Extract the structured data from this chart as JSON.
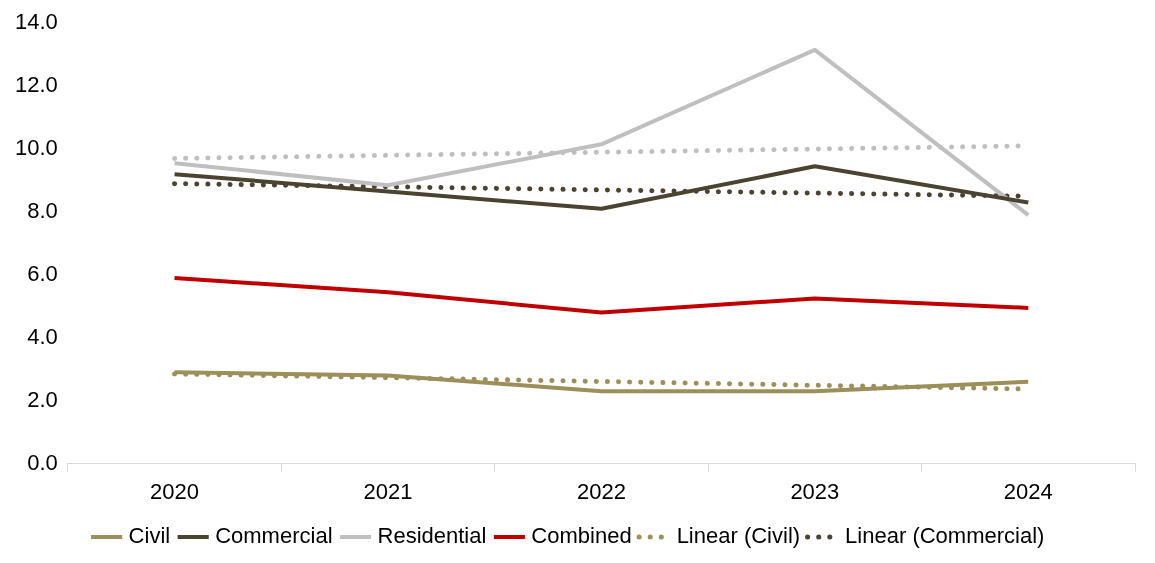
{
  "chart_data": {
    "type": "line",
    "categories": [
      "2020",
      "2021",
      "2022",
      "2023",
      "2024"
    ],
    "series": [
      {
        "name": "Civil",
        "color": "#9c8f5a",
        "values": [
          2.9,
          2.8,
          2.3,
          2.3,
          2.6
        ]
      },
      {
        "name": "Commercial",
        "color": "#4a4330",
        "values": [
          9.2,
          8.65,
          8.1,
          9.45,
          8.3
        ]
      },
      {
        "name": "Residential",
        "color": "#bfbfbf",
        "values": [
          9.55,
          8.85,
          10.15,
          13.15,
          7.9
        ]
      },
      {
        "name": "Combined",
        "color": "#c00000",
        "values": [
          5.9,
          5.45,
          4.8,
          5.25,
          4.95
        ]
      },
      {
        "name": "Linear (Civil)",
        "color": "#9c8f5a",
        "line_style": "dotted",
        "values": [
          2.85,
          2.73,
          2.61,
          2.49,
          2.37
        ]
      },
      {
        "name": "Linear (Commercial)",
        "color": "#4a4330",
        "line_style": "dotted",
        "values": [
          8.9,
          8.8,
          8.7,
          8.6,
          8.5
        ]
      },
      {
        "color": "#bfbfbf",
        "line_style": "dotted",
        "values": [
          9.7,
          9.8,
          9.9,
          10.0,
          10.1
        ]
      }
    ],
    "ylim": [
      0,
      14
    ],
    "yticks": [
      {
        "value": 0,
        "label": "0.0"
      },
      {
        "value": 2,
        "label": "2.0"
      },
      {
        "value": 4,
        "label": "4.0"
      },
      {
        "value": 6,
        "label": "6.0"
      },
      {
        "value": 8,
        "label": "8.0"
      },
      {
        "value": 10,
        "label": "10.0"
      },
      {
        "value": 12,
        "label": "12.0"
      },
      {
        "value": 14,
        "label": "14.0"
      }
    ],
    "grid": false,
    "legend": "bottom",
    "marker": "none",
    "line_style": "solid"
  }
}
